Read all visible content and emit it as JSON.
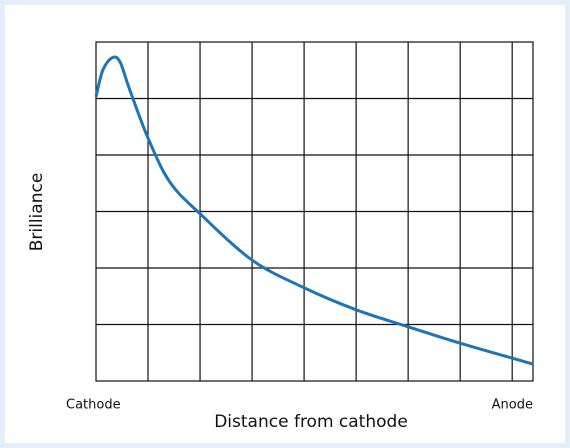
{
  "chart_data": {
    "type": "line",
    "x_label": "Distance from cathode",
    "y_label": "Brilliance",
    "x": [
      0,
      0.13,
      0.31,
      0.46,
      0.65,
      1,
      1.42,
      2,
      3,
      4,
      5,
      6,
      7,
      8.4
    ],
    "series": [
      {
        "color": "#1f73b7",
        "values": [
          5.03,
          5.5,
          5.72,
          5.65,
          5.15,
          4.3,
          3.52,
          2.96,
          2.14,
          1.65,
          1.26,
          0.96,
          0.67,
          0.3
        ]
      }
    ],
    "xlim": [
      0,
      8.4
    ],
    "ylim": [
      0,
      6
    ],
    "xticks": [
      {
        "value": 0,
        "label": "Cathode"
      },
      {
        "value": 8.4,
        "label": "Anode"
      }
    ],
    "xgrid": [
      1,
      2,
      3,
      4,
      5,
      6,
      7,
      8
    ],
    "ygrid": [
      1,
      2,
      3,
      4,
      5
    ],
    "grid": true
  }
}
